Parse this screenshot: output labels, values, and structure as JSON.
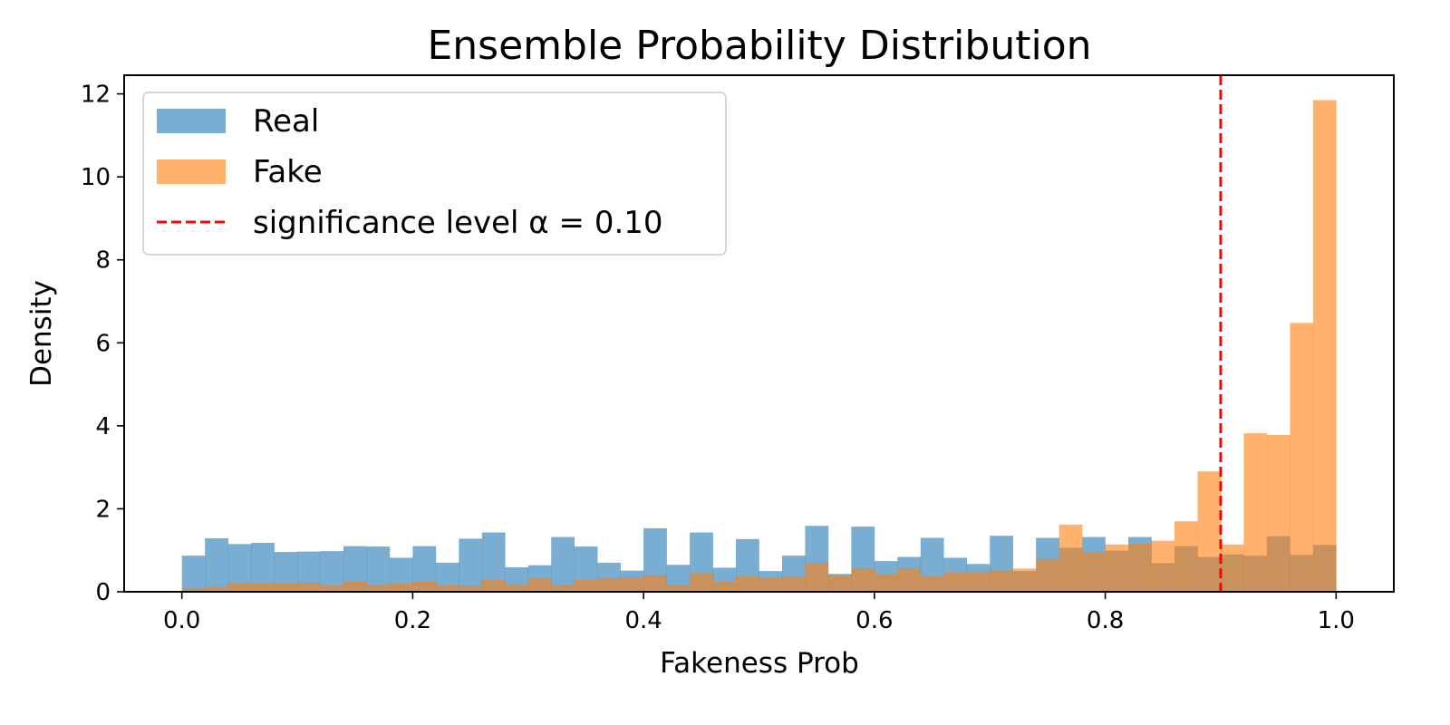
{
  "chart_data": {
    "type": "histogram",
    "title": "Ensemble Probability Distribution",
    "xlabel": "Fakeness Prob",
    "ylabel": "Density",
    "xlim": [
      -0.05,
      1.05
    ],
    "ylim": [
      0,
      12.45
    ],
    "xticks": [
      0.0,
      0.2,
      0.4,
      0.6,
      0.8,
      1.0
    ],
    "xtick_labels": [
      "0.0",
      "0.2",
      "0.4",
      "0.6",
      "0.8",
      "1.0"
    ],
    "yticks": [
      0,
      2,
      4,
      6,
      8,
      10,
      12
    ],
    "ytick_labels": [
      "0",
      "2",
      "4",
      "6",
      "8",
      "10",
      "12"
    ],
    "bin_width": 0.02,
    "bins_start": 0.0,
    "series": [
      {
        "name": "Real",
        "color": "#1f77b4",
        "opacity": 0.6,
        "values": [
          0.87,
          1.29,
          1.15,
          1.18,
          0.96,
          0.97,
          0.98,
          1.1,
          1.09,
          0.82,
          1.1,
          0.7,
          1.28,
          1.43,
          0.59,
          0.64,
          1.32,
          1.09,
          0.7,
          0.51,
          1.53,
          0.65,
          1.43,
          0.58,
          1.27,
          0.5,
          0.87,
          1.59,
          0.43,
          1.57,
          0.74,
          0.84,
          1.3,
          0.82,
          0.67,
          1.35,
          0.5,
          1.3,
          1.06,
          1.32,
          0.99,
          1.32,
          0.69,
          1.1,
          0.84,
          0.9,
          0.87,
          1.34,
          0.89,
          1.13
        ]
      },
      {
        "name": "Fake",
        "color": "#ff7f0e",
        "opacity": 0.6,
        "values": [
          0.09,
          0.13,
          0.2,
          0.2,
          0.2,
          0.22,
          0.15,
          0.25,
          0.17,
          0.2,
          0.24,
          0.16,
          0.14,
          0.3,
          0.18,
          0.32,
          0.17,
          0.3,
          0.32,
          0.35,
          0.4,
          0.17,
          0.45,
          0.24,
          0.38,
          0.34,
          0.36,
          0.7,
          0.4,
          0.57,
          0.43,
          0.57,
          0.37,
          0.47,
          0.48,
          0.52,
          0.56,
          0.79,
          1.62,
          0.96,
          1.14,
          1.16,
          1.23,
          1.7,
          2.9,
          1.14,
          3.82,
          3.78,
          6.48,
          11.85
        ]
      }
    ],
    "reference_lines": [
      {
        "type": "vertical",
        "x": 0.9,
        "color": "#ff0000",
        "style": "dashed",
        "label": "significance level α = 0.10"
      }
    ],
    "legend_position": "upper-left"
  }
}
